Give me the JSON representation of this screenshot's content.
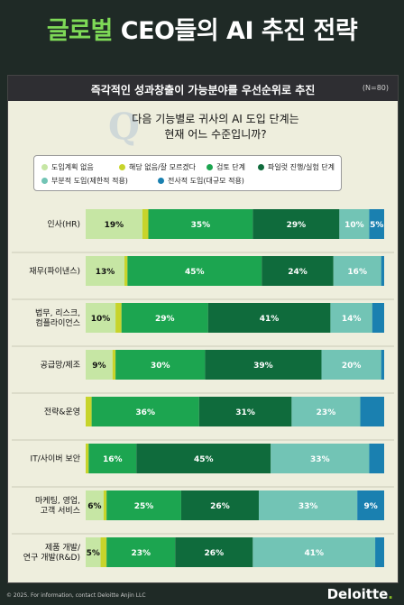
{
  "title": {
    "highlight": "글로벌",
    "rest": "CEO들의 AI 추진 전략"
  },
  "subtitle": "즉각적인 성과창출이 가능분야를 우선순위로 추진",
  "sample_size": "(N=80)",
  "question_mark": "Q",
  "question": "다음 기능별로 귀사의 AI 도입 단계는 현재 어느 수준입니까?",
  "footer": "© 2025. For information, contact Deloitte Anjin LLC",
  "logo": {
    "text": "Deloitte",
    "dot": "."
  },
  "chart_data": {
    "type": "bar",
    "orientation": "horizontal",
    "stacked": true,
    "normalized": true,
    "categories": [
      "인사(HR)",
      "재무(파이낸스)",
      "법무, 리스크, 컴플라이언스",
      "공급망/제조",
      "전략&운영",
      "IT/사이버 보안",
      "마케팅, 영업, 고객 서비스",
      "제품 개발/ 연구 개발(R&D)"
    ],
    "category_lines": [
      [
        "인사(HR)"
      ],
      [
        "재무(파이낸스)"
      ],
      [
        "법무, 리스크,",
        "컴플라이언스"
      ],
      [
        "공급망/제조"
      ],
      [
        "전략&운영"
      ],
      [
        "IT/사이버 보안"
      ],
      [
        "마케팅, 영업,",
        "고객 서비스"
      ],
      [
        "제품 개발/",
        "연구 개발(R&D)"
      ]
    ],
    "series": [
      {
        "name": "도입계획 없음",
        "color": "#c6e6a4",
        "label_color": "#111111",
        "values": [
          19,
          13,
          10,
          9,
          0,
          0,
          6,
          5
        ]
      },
      {
        "name": "해당 없음/잘 모르겠다",
        "color": "#c7d42b",
        "label_color": "#111111",
        "values": [
          2,
          1,
          2,
          1,
          2,
          1,
          1,
          2
        ]
      },
      {
        "name": "검토 단계",
        "color": "#1ca550",
        "label_color": "#ffffff",
        "values": [
          35,
          45,
          29,
          30,
          36,
          16,
          25,
          23
        ]
      },
      {
        "name": "파일럿 진행/실험 단계",
        "color": "#0f6b3c",
        "label_color": "#ffffff",
        "values": [
          29,
          24,
          41,
          39,
          31,
          45,
          26,
          26
        ]
      },
      {
        "name": "부분적 도입(제한적 적용)",
        "color": "#72c4b5",
        "label_color": "#ffffff",
        "values": [
          10,
          16,
          14,
          20,
          23,
          33,
          33,
          41
        ]
      },
      {
        "name": "전사적 도입(대규모 적용)",
        "color": "#1a80b0",
        "label_color": "#ffffff",
        "values": [
          5,
          1,
          4,
          1,
          8,
          5,
          9,
          3
        ]
      }
    ],
    "data_labels": [
      [
        "19%",
        "",
        "35%",
        "29%",
        "10%",
        "5%"
      ],
      [
        "13%",
        "",
        "45%",
        "24%",
        "16%",
        ""
      ],
      [
        "10%",
        "",
        "29%",
        "41%",
        "14%",
        ""
      ],
      [
        "9%",
        "",
        "30%",
        "39%",
        "20%",
        ""
      ],
      [
        "",
        "",
        "36%",
        "31%",
        "23%",
        ""
      ],
      [
        "",
        "",
        "16%",
        "45%",
        "33%",
        ""
      ],
      [
        "6%",
        "",
        "25%",
        "26%",
        "33%",
        "9%"
      ],
      [
        "5%",
        "",
        "23%",
        "26%",
        "41%",
        ""
      ]
    ],
    "legend_position": "top",
    "grid": false
  }
}
